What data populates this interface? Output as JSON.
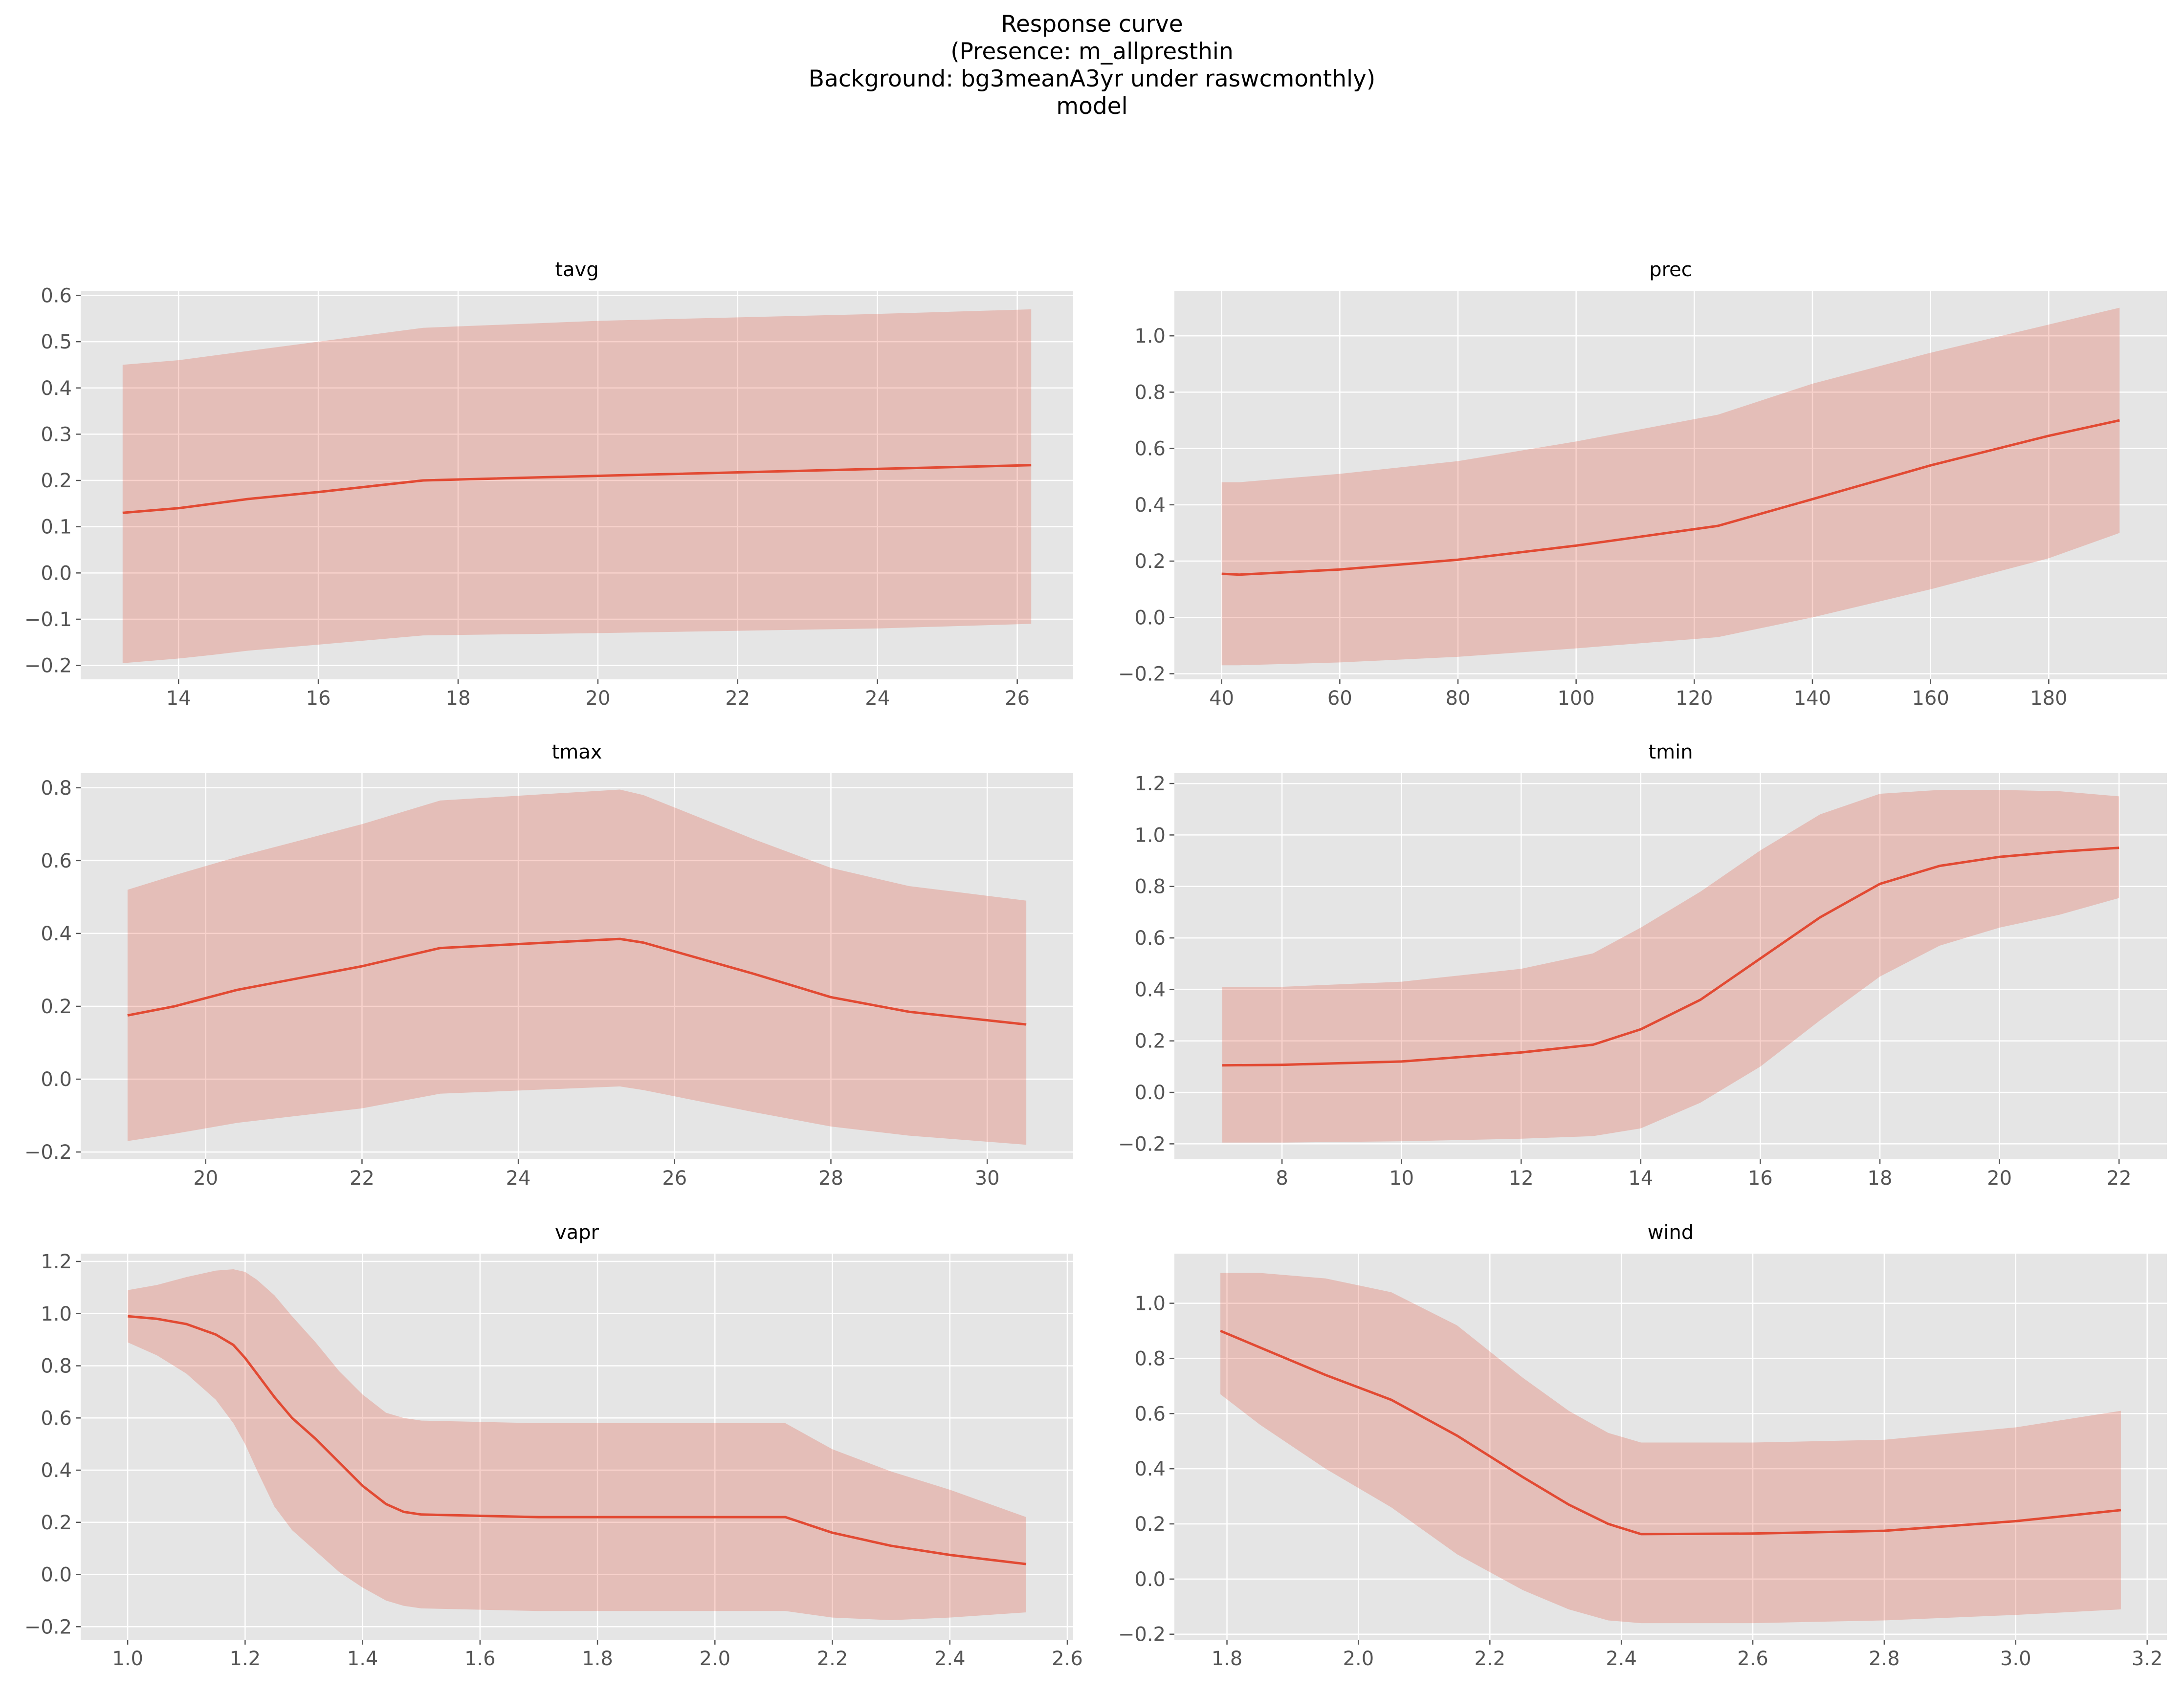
{
  "title_lines": [
    "Response curve",
    "(Presence: m_allpresthin",
    "Background: bg3meanA3yr under raswcmonthly)",
    "model"
  ],
  "colors": {
    "line": "#E24A33",
    "band": "#E24A33",
    "panel_bg": "#E5E5E5",
    "grid": "#FFFFFF",
    "tick_text": "#555555"
  },
  "chart_data": [
    {
      "type": "line",
      "title": "tavg",
      "xlim": [
        12.6,
        26.8
      ],
      "ylim": [
        -0.23,
        0.61
      ],
      "xticks": [
        14,
        16,
        18,
        20,
        22,
        24,
        26
      ],
      "yticks": [
        -0.2,
        -0.1,
        0.0,
        0.1,
        0.2,
        0.3,
        0.4,
        0.5,
        0.6
      ],
      "ytick_labels": [
        "−0.2",
        "−0.1",
        "0.0",
        "0.1",
        "0.2",
        "0.3",
        "0.4",
        "0.5",
        "0.6"
      ],
      "x": [
        13.2,
        14.0,
        14.5,
        15.0,
        16.0,
        17.5,
        20.0,
        24.0,
        26.2
      ],
      "y": [
        0.13,
        0.14,
        0.15,
        0.16,
        0.175,
        0.2,
        0.21,
        0.225,
        0.233
      ],
      "lower": [
        -0.195,
        -0.185,
        -0.177,
        -0.168,
        -0.155,
        -0.135,
        -0.13,
        -0.12,
        -0.11
      ],
      "upper": [
        0.45,
        0.46,
        0.47,
        0.48,
        0.5,
        0.53,
        0.545,
        0.56,
        0.57
      ]
    },
    {
      "type": "line",
      "title": "prec",
      "xlim": [
        32,
        200
      ],
      "ylim": [
        -0.22,
        1.16
      ],
      "xticks": [
        40,
        60,
        80,
        100,
        120,
        140,
        160,
        180
      ],
      "yticks": [
        -0.2,
        0.0,
        0.2,
        0.4,
        0.6,
        0.8,
        1.0
      ],
      "ytick_labels": [
        "−0.2",
        "0.0",
        "0.2",
        "0.4",
        "0.6",
        "0.8",
        "1.0"
      ],
      "x": [
        40,
        43,
        60,
        80,
        100,
        124,
        140,
        160,
        180,
        192
      ],
      "y": [
        0.155,
        0.152,
        0.17,
        0.205,
        0.255,
        0.325,
        0.42,
        0.54,
        0.645,
        0.7
      ],
      "lower": [
        -0.17,
        -0.17,
        -0.16,
        -0.14,
        -0.11,
        -0.07,
        0.0,
        0.1,
        0.21,
        0.3
      ],
      "upper": [
        0.48,
        0.48,
        0.51,
        0.555,
        0.625,
        0.72,
        0.83,
        0.94,
        1.04,
        1.1
      ]
    },
    {
      "type": "line",
      "title": "tmax",
      "xlim": [
        18.4,
        31.1
      ],
      "ylim": [
        -0.22,
        0.84
      ],
      "xticks": [
        20,
        22,
        24,
        26,
        28,
        30
      ],
      "yticks": [
        -0.2,
        0.0,
        0.2,
        0.4,
        0.6,
        0.8
      ],
      "ytick_labels": [
        "−0.2",
        "0.0",
        "0.2",
        "0.4",
        "0.6",
        "0.8"
      ],
      "x": [
        19.0,
        19.6,
        20.4,
        22.0,
        23.0,
        25.3,
        25.6,
        27.0,
        28.0,
        29.0,
        30.5
      ],
      "y": [
        0.175,
        0.2,
        0.245,
        0.31,
        0.36,
        0.385,
        0.375,
        0.29,
        0.225,
        0.185,
        0.15
      ],
      "lower": [
        -0.17,
        -0.15,
        -0.12,
        -0.08,
        -0.04,
        -0.02,
        -0.03,
        -0.09,
        -0.13,
        -0.155,
        -0.18
      ],
      "upper": [
        0.52,
        0.56,
        0.61,
        0.7,
        0.765,
        0.795,
        0.78,
        0.66,
        0.58,
        0.53,
        0.49
      ]
    },
    {
      "type": "line",
      "title": "tmin",
      "xlim": [
        6.2,
        22.8
      ],
      "ylim": [
        -0.26,
        1.24
      ],
      "xticks": [
        8,
        10,
        12,
        14,
        16,
        18,
        20,
        22
      ],
      "yticks": [
        -0.2,
        0.0,
        0.2,
        0.4,
        0.6,
        0.8,
        1.0,
        1.2
      ],
      "ytick_labels": [
        "−0.2",
        "0.0",
        "0.2",
        "0.4",
        "0.6",
        "0.8",
        "1.0",
        "1.2"
      ],
      "x": [
        7,
        8,
        10,
        12,
        13.2,
        14,
        15,
        16,
        17,
        18,
        19,
        20,
        21,
        22
      ],
      "y": [
        0.105,
        0.107,
        0.12,
        0.155,
        0.185,
        0.245,
        0.36,
        0.52,
        0.68,
        0.81,
        0.88,
        0.915,
        0.935,
        0.95
      ],
      "lower": [
        -0.195,
        -0.195,
        -0.19,
        -0.18,
        -0.17,
        -0.14,
        -0.04,
        0.1,
        0.28,
        0.45,
        0.57,
        0.64,
        0.69,
        0.755
      ],
      "upper": [
        0.41,
        0.41,
        0.43,
        0.48,
        0.54,
        0.64,
        0.78,
        0.94,
        1.08,
        1.16,
        1.175,
        1.175,
        1.17,
        1.15
      ]
    },
    {
      "type": "line",
      "title": "vapr",
      "xlim": [
        0.92,
        2.61
      ],
      "ylim": [
        -0.25,
        1.23
      ],
      "xticks": [
        1.0,
        1.2,
        1.4,
        1.6,
        1.8,
        2.0,
        2.2,
        2.4,
        2.6
      ],
      "xtick_labels": [
        "1.0",
        "1.2",
        "1.4",
        "1.6",
        "1.8",
        "2.0",
        "2.2",
        "2.4",
        "2.6"
      ],
      "yticks": [
        -0.2,
        0.0,
        0.2,
        0.4,
        0.6,
        0.8,
        1.0,
        1.2
      ],
      "ytick_labels": [
        "−0.2",
        "0.0",
        "0.2",
        "0.4",
        "0.6",
        "0.8",
        "1.0",
        "1.2"
      ],
      "x": [
        1.0,
        1.05,
        1.1,
        1.15,
        1.18,
        1.2,
        1.22,
        1.25,
        1.28,
        1.32,
        1.36,
        1.4,
        1.44,
        1.47,
        1.5,
        1.7,
        2.0,
        2.12,
        2.2,
        2.3,
        2.4,
        2.53
      ],
      "y": [
        0.99,
        0.98,
        0.96,
        0.92,
        0.88,
        0.83,
        0.77,
        0.68,
        0.6,
        0.52,
        0.43,
        0.34,
        0.27,
        0.24,
        0.23,
        0.22,
        0.22,
        0.22,
        0.16,
        0.11,
        0.075,
        0.04
      ],
      "lower": [
        0.89,
        0.84,
        0.77,
        0.67,
        0.58,
        0.5,
        0.4,
        0.26,
        0.17,
        0.09,
        0.01,
        -0.05,
        -0.1,
        -0.12,
        -0.13,
        -0.14,
        -0.14,
        -0.14,
        -0.165,
        -0.175,
        -0.165,
        -0.145
      ],
      "upper": [
        1.09,
        1.11,
        1.14,
        1.165,
        1.17,
        1.16,
        1.13,
        1.07,
        0.99,
        0.89,
        0.78,
        0.69,
        0.62,
        0.6,
        0.59,
        0.58,
        0.58,
        0.58,
        0.48,
        0.395,
        0.325,
        0.22
      ]
    },
    {
      "type": "line",
      "title": "wind",
      "xlim": [
        1.72,
        3.23
      ],
      "ylim": [
        -0.22,
        1.18
      ],
      "xticks": [
        1.8,
        2.0,
        2.2,
        2.4,
        2.6,
        2.8,
        3.0,
        3.2
      ],
      "xtick_labels": [
        "1.8",
        "2.0",
        "2.2",
        "2.4",
        "2.6",
        "2.8",
        "3.0",
        "3.2"
      ],
      "yticks": [
        -0.2,
        0.0,
        0.2,
        0.4,
        0.6,
        0.8,
        1.0
      ],
      "ytick_labels": [
        "−0.2",
        "0.0",
        "0.2",
        "0.4",
        "0.6",
        "0.8",
        "1.0"
      ],
      "x": [
        1.79,
        1.85,
        1.95,
        2.05,
        2.15,
        2.25,
        2.32,
        2.38,
        2.43,
        2.6,
        2.8,
        3.0,
        3.16
      ],
      "y": [
        0.9,
        0.84,
        0.74,
        0.65,
        0.52,
        0.37,
        0.27,
        0.2,
        0.163,
        0.165,
        0.175,
        0.21,
        0.25
      ],
      "lower": [
        0.67,
        0.56,
        0.4,
        0.26,
        0.09,
        -0.04,
        -0.11,
        -0.15,
        -0.16,
        -0.16,
        -0.15,
        -0.13,
        -0.11
      ],
      "upper": [
        1.11,
        1.11,
        1.09,
        1.04,
        0.92,
        0.73,
        0.61,
        0.53,
        0.495,
        0.495,
        0.505,
        0.55,
        0.61
      ]
    }
  ]
}
